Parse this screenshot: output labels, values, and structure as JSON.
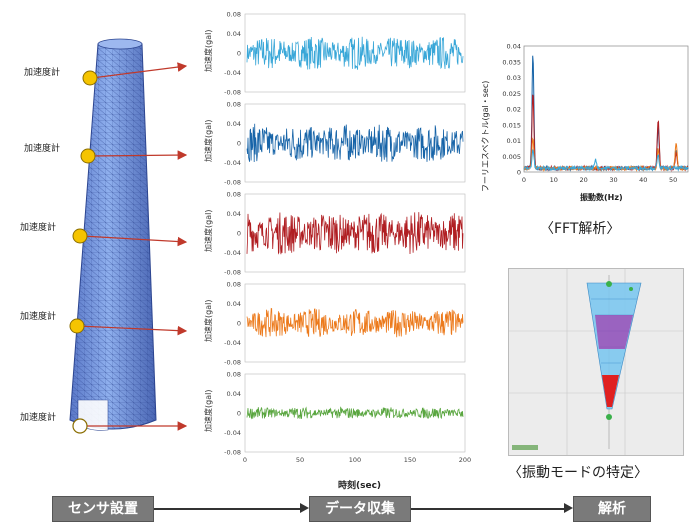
{
  "sensor_label": "加速度計",
  "panel_ylabel": "加速度(gal)",
  "y_ticks": [
    "0.08",
    "0.04",
    "0",
    "-0.04",
    "-0.08"
  ],
  "x_ticks": [
    "0",
    "50",
    "100",
    "150",
    "200"
  ],
  "x_axis_label": "時刻(sec)",
  "fft": {
    "ylabel": "フーリエスペクトル(gal・sec)",
    "xlabel": "振動数(Hz)",
    "y_ticks": [
      "0.04",
      "0.035",
      "0.03",
      "0.025",
      "0.02",
      "0.015",
      "0.01",
      "0.005",
      "0"
    ],
    "x_ticks": [
      "0",
      "10",
      "20",
      "30",
      "40",
      "50"
    ],
    "caption": "〈FFT解析〉"
  },
  "mode": {
    "caption": "〈振動モードの特定〉"
  },
  "steps": [
    "センサ設置",
    "データ収集",
    "解析"
  ],
  "colors": {
    "series": [
      "#39a7d8",
      "#1764a8",
      "#b01e22",
      "#ec7a1c",
      "#5aa640"
    ],
    "sensor": "#f5c400",
    "arrow": "#c0392b",
    "tower": "#6f8fd6",
    "step_box": "#7a7a7a"
  },
  "chart_data": [
    {
      "type": "line",
      "ylabel": "加速度(gal)",
      "xlabel": "",
      "ylim": [
        -0.08,
        0.08
      ],
      "xlim": [
        0,
        200
      ],
      "series": [
        {
          "color": "#39a7d8",
          "amplitude": 0.035
        }
      ]
    },
    {
      "type": "line",
      "ylabel": "加速度(gal)",
      "xlabel": "",
      "ylim": [
        -0.08,
        0.08
      ],
      "xlim": [
        0,
        200
      ],
      "series": [
        {
          "color": "#1764a8",
          "amplitude": 0.04
        }
      ]
    },
    {
      "type": "line",
      "ylabel": "加速度(gal)",
      "xlabel": "",
      "ylim": [
        -0.08,
        0.08
      ],
      "xlim": [
        0,
        200
      ],
      "series": [
        {
          "color": "#b01e22",
          "amplitude": 0.045
        }
      ]
    },
    {
      "type": "line",
      "ylabel": "加速度(gal)",
      "xlabel": "",
      "ylim": [
        -0.08,
        0.08
      ],
      "xlim": [
        0,
        200
      ],
      "series": [
        {
          "color": "#ec7a1c",
          "amplitude": 0.03
        }
      ]
    },
    {
      "type": "line",
      "ylabel": "加速度(gal)",
      "xlabel": "時刻(sec)",
      "ylim": [
        -0.08,
        0.08
      ],
      "xlim": [
        0,
        200
      ],
      "series": [
        {
          "color": "#5aa640",
          "amplitude": 0.012
        }
      ]
    },
    {
      "type": "line",
      "ylabel": "フーリエスペクトル(gal・sec)",
      "xlabel": "振動数(Hz)",
      "ylim": [
        0,
        0.04
      ],
      "xlim": [
        0,
        55
      ],
      "series": [
        {
          "color": "#1764a8",
          "peaks": [
            [
              3,
              0.036
            ],
            [
              45,
              0.013
            ],
            [
              51,
              0.006
            ]
          ]
        },
        {
          "color": "#b01e22",
          "peaks": [
            [
              3,
              0.024
            ],
            [
              45,
              0.015
            ],
            [
              51,
              0.005
            ]
          ]
        },
        {
          "color": "#ec7a1c",
          "peaks": [
            [
              3,
              0.01
            ],
            [
              45,
              0.006
            ],
            [
              51,
              0.008
            ]
          ]
        },
        {
          "color": "#39a7d8",
          "peaks": [
            [
              3,
              0.006
            ],
            [
              24,
              0.003
            ],
            [
              45,
              0.004
            ]
          ]
        }
      ]
    }
  ]
}
